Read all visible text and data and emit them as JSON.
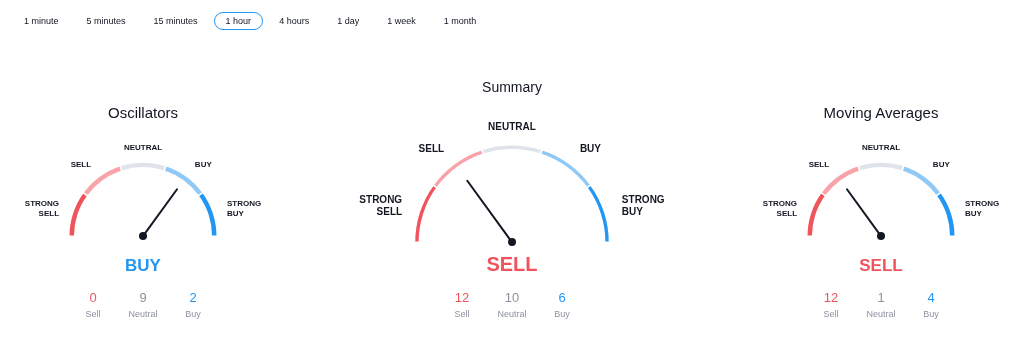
{
  "chart_data": [
    {
      "type": "other",
      "annotations": [
        "1 minute",
        "5 minutes",
        "15 minutes",
        "1 hour",
        "4 hours",
        "1 day",
        "1 week",
        "1 month"
      ]
    },
    {
      "type": "donut",
      "title": "Oscillators",
      "categories": [
        "STRONG SELL",
        "SELL",
        "NEUTRAL",
        "BUY",
        "STRONG BUY"
      ],
      "values": [
        20,
        20,
        20,
        20,
        20
      ],
      "colors": [
        "#f0535c",
        "#f7a3a8",
        "#e0e3eb",
        "#90c8f6",
        "#2196f3"
      ],
      "needle": "BUY",
      "annotations": [
        "BUY",
        "0",
        "Sell",
        "9",
        "Neutral",
        "2",
        "Buy"
      ]
    },
    {
      "type": "donut",
      "title": "Summary",
      "categories": [
        "STRONG SELL",
        "SELL",
        "NEUTRAL",
        "BUY",
        "STRONG BUY"
      ],
      "values": [
        20,
        20,
        20,
        20,
        20
      ],
      "colors": [
        "#f0535c",
        "#f7a3a8",
        "#e0e3eb",
        "#90c8f6",
        "#2196f3"
      ],
      "needle": "SELL",
      "annotations": [
        "SELL",
        "12",
        "Sell",
        "10",
        "Neutral",
        "6",
        "Buy"
      ]
    },
    {
      "type": "donut",
      "title": "Moving Averages",
      "categories": [
        "STRONG SELL",
        "SELL",
        "NEUTRAL",
        "BUY",
        "STRONG BUY"
      ],
      "values": [
        20,
        20,
        20,
        20,
        20
      ],
      "colors": [
        "#f0535c",
        "#f7a3a8",
        "#e0e3eb",
        "#90c8f6",
        "#2196f3"
      ],
      "needle": "SELL",
      "annotations": [
        "SELL",
        "12",
        "Sell",
        "1",
        "Neutral",
        "4",
        "Buy"
      ]
    }
  ]
}
